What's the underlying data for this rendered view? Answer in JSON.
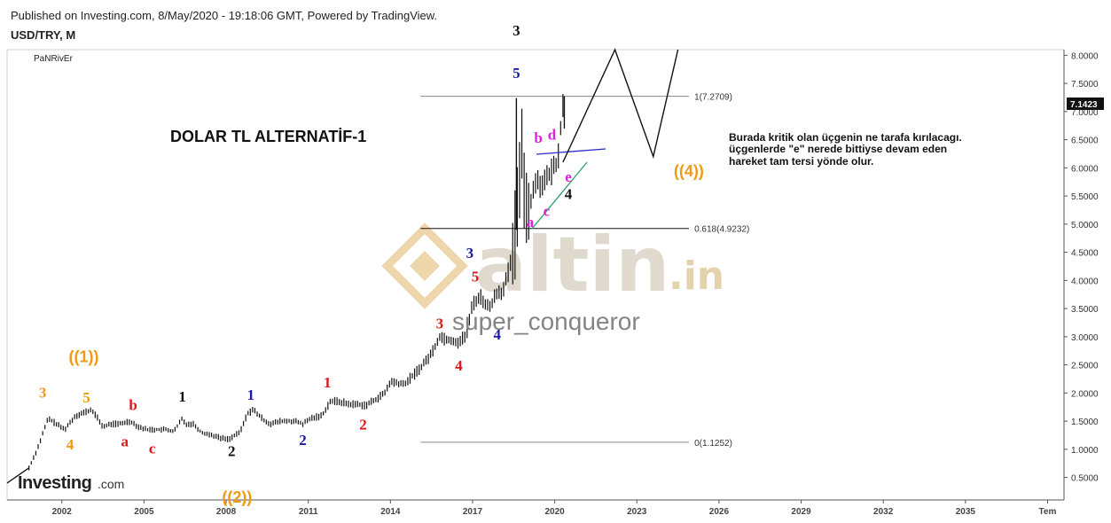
{
  "header": {
    "published": "Published on Investing.com, 8/May/2020 - 19:18:06 GMT, Powered by TradingView.",
    "symbol": "USD/TRY, M",
    "author": "PaNRivEr"
  },
  "title": "DOLAR TL ALTERNATİF-1",
  "note": [
    "Burada kritik olan üçgenin ne tarafa kırılacagı.",
    "üçgenlerde \"e\" nerede bittiyse devam eden",
    "hareket tam tersi yönde olur."
  ],
  "watermark": {
    "brand": "altin",
    "tld": ".in",
    "user": "super_conqueror"
  },
  "logo": {
    "main": "Investing",
    "suffix": ".com"
  },
  "colors": {
    "wave_orange": "#f09a12",
    "wave_black": "#111111",
    "wave_blue": "#1a1aa6",
    "wave_red": "#e01515",
    "wave_pink": "#e020e0",
    "price_tag": "#111111"
  },
  "chart_data": {
    "type": "line",
    "series": [
      {
        "values_description": "USD/TRY monthly close (approx.)",
        "x": [
          2000.8,
          2001.1,
          2001.5,
          2001.8,
          2002.1,
          2002.5,
          2002.8,
          2003.1,
          2003.5,
          2003.8,
          2004.1,
          2004.5,
          2004.8,
          2005.1,
          2005.5,
          2005.8,
          2006.1,
          2006.4,
          2006.5,
          2006.8,
          2007.1,
          2007.5,
          2007.8,
          2008.1,
          2008.5,
          2008.8,
          2009.0,
          2009.3,
          2009.6,
          2010.0,
          2010.5,
          2010.8,
          2011.1,
          2011.5,
          2011.8,
          2012.1,
          2012.5,
          2012.8,
          2013.1,
          2013.5,
          2013.8,
          2014.0,
          2014.5,
          2014.8,
          2015.1,
          2015.5,
          2015.8,
          2016.1,
          2016.5,
          2016.8,
          2017.0,
          2017.3,
          2017.6,
          2017.9,
          2018.1,
          2018.4,
          2018.6,
          2018.8,
          2018.9,
          2019.1,
          2019.3,
          2019.5,
          2019.7,
          2019.9,
          2020.1,
          2020.3
        ],
        "y": [
          0.67,
          1.0,
          1.55,
          1.45,
          1.35,
          1.6,
          1.65,
          1.7,
          1.4,
          1.45,
          1.45,
          1.5,
          1.4,
          1.35,
          1.35,
          1.35,
          1.32,
          1.55,
          1.45,
          1.45,
          1.3,
          1.25,
          1.2,
          1.18,
          1.3,
          1.65,
          1.7,
          1.55,
          1.45,
          1.5,
          1.5,
          1.45,
          1.55,
          1.6,
          1.85,
          1.85,
          1.8,
          1.8,
          1.78,
          1.9,
          2.0,
          2.2,
          2.15,
          2.3,
          2.45,
          2.7,
          3.0,
          2.95,
          2.9,
          3.05,
          3.6,
          3.7,
          3.5,
          3.8,
          3.8,
          4.3,
          4.9,
          6.6,
          5.4,
          5.3,
          5.8,
          5.7,
          5.8,
          5.95,
          6.1,
          7.14
        ]
      }
    ],
    "y_ticks": [
      "8.0000",
      "7.5000",
      "7.0000",
      "6.5000",
      "6.0000",
      "5.5000",
      "5.0000",
      "4.5000",
      "4.0000",
      "3.5000",
      "3.0000",
      "2.5000",
      "2.0000",
      "1.5000",
      "1.0000",
      "0.5000"
    ],
    "x_ticks": [
      "2002",
      "2005",
      "2008",
      "2011",
      "2014",
      "2017",
      "2020",
      "2023",
      "2026",
      "2029",
      "2032",
      "2035",
      "Tem"
    ],
    "ylim": [
      0.1,
      8.1
    ],
    "xlim": [
      2000.0,
      2038.6
    ],
    "current_price": "7.1423",
    "levels": [
      {
        "label": "1(7.2709)",
        "value": 7.2709
      },
      {
        "label": "0.618(4.9232)",
        "value": 4.9232
      },
      {
        "label": "0(1.1252)",
        "value": 1.1252
      }
    ],
    "projection": {
      "x": [
        2020.3,
        2022.2,
        2023.6,
        2024.5
      ],
      "y": [
        6.1,
        8.1,
        6.2,
        8.1
      ]
    },
    "wave_labels": [
      {
        "text": "((1))",
        "x": 2002.8,
        "y": 2.55,
        "c": "orange",
        "k": "paren"
      },
      {
        "text": "((2))",
        "x": 2008.4,
        "y": 0.05,
        "c": "orange",
        "k": "paren"
      },
      {
        "text": "((4))",
        "x": 2024.9,
        "y": 5.85,
        "c": "orange",
        "k": "paren"
      },
      {
        "text": "3",
        "x": 2001.3,
        "y": 1.92,
        "c": "orange"
      },
      {
        "text": "5",
        "x": 2002.9,
        "y": 1.83,
        "c": "orange"
      },
      {
        "text": "4",
        "x": 2002.3,
        "y": 1.0,
        "c": "orange"
      },
      {
        "text": "a",
        "x": 2004.3,
        "y": 1.05,
        "c": "red"
      },
      {
        "text": "b",
        "x": 2004.6,
        "y": 1.7,
        "c": "red"
      },
      {
        "text": "c",
        "x": 2005.3,
        "y": 0.93,
        "c": "red"
      },
      {
        "text": "1",
        "x": 2006.4,
        "y": 1.85,
        "c": "black"
      },
      {
        "text": "2",
        "x": 2008.2,
        "y": 0.88,
        "c": "black"
      },
      {
        "text": "1",
        "x": 2008.9,
        "y": 1.88,
        "c": "blue"
      },
      {
        "text": "2",
        "x": 2010.8,
        "y": 1.08,
        "c": "blue"
      },
      {
        "text": "1",
        "x": 2011.7,
        "y": 2.1,
        "c": "red"
      },
      {
        "text": "2",
        "x": 2013.0,
        "y": 1.35,
        "c": "red"
      },
      {
        "text": "3",
        "x": 2015.8,
        "y": 3.15,
        "c": "red"
      },
      {
        "text": "4",
        "x": 2016.5,
        "y": 2.4,
        "c": "red"
      },
      {
        "text": "3",
        "x": 2016.9,
        "y": 4.4,
        "c": "blue"
      },
      {
        "text": "5",
        "x": 2017.1,
        "y": 3.98,
        "c": "red"
      },
      {
        "text": "4",
        "x": 2017.9,
        "y": 2.95,
        "c": "blue"
      },
      {
        "text": "3",
        "x": 2018.6,
        "y": 8.35,
        "c": "black"
      },
      {
        "text": "5",
        "x": 2018.6,
        "y": 7.6,
        "c": "blue"
      },
      {
        "text": "a",
        "x": 2019.1,
        "y": 4.95,
        "c": "pink"
      },
      {
        "text": "b",
        "x": 2019.4,
        "y": 6.45,
        "c": "pink"
      },
      {
        "text": "c",
        "x": 2019.7,
        "y": 5.15,
        "c": "pink"
      },
      {
        "text": "d",
        "x": 2019.9,
        "y": 6.5,
        "c": "pink"
      },
      {
        "text": "e",
        "x": 2020.5,
        "y": 5.75,
        "c": "pink"
      },
      {
        "text": "4",
        "x": 2020.5,
        "y": 5.45,
        "c": "black"
      }
    ]
  }
}
